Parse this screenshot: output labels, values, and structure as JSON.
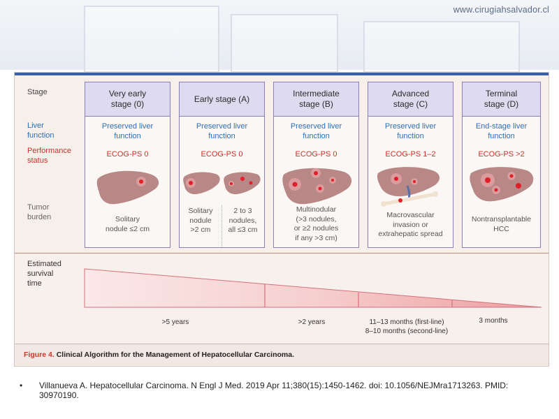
{
  "header": {
    "url": "www.cirugiahsalvador.cl"
  },
  "row_labels": {
    "stage": "Stage",
    "liver_function": [
      "Liver",
      "function"
    ],
    "performance_status": [
      "Performance",
      "status"
    ],
    "tumor_burden": [
      "Tumor",
      "burden"
    ]
  },
  "stages": [
    {
      "title": [
        "Very early",
        "stage (0)"
      ],
      "liver": [
        "Preserved liver",
        "function"
      ],
      "ecog": "ECOG-PS 0",
      "tumor": [
        "Solitary",
        "nodule ≤2 cm"
      ]
    },
    {
      "title": [
        "Early stage (A)"
      ],
      "liver": [
        "Preserved liver",
        "function"
      ],
      "ecog": "ECOG-PS 0",
      "tumor_sub": [
        [
          "Solitary",
          "nodule",
          ">2 cm"
        ],
        [
          "2 to 3",
          "nodules,",
          "all ≤3 cm"
        ]
      ]
    },
    {
      "title": [
        "Intermediate",
        "stage (B)"
      ],
      "liver": [
        "Preserved liver",
        "function"
      ],
      "ecog": "ECOG-PS 0",
      "tumor": [
        "Multinodular",
        "(>3 nodules,",
        "or ≥2 nodules",
        "if any >3 cm)"
      ]
    },
    {
      "title": [
        "Advanced",
        "stage (C)"
      ],
      "liver": [
        "Preserved liver",
        "function"
      ],
      "ecog": "ECOG-PS 1–2",
      "tumor": [
        "Macrovascular",
        "invasion or",
        "extrahepatic spread"
      ]
    },
    {
      "title": [
        "Terminal",
        "stage (D)"
      ],
      "liver": [
        "End-stage liver",
        "function"
      ],
      "ecog": "ECOG-PS >2",
      "tumor": [
        "Nontransplantable",
        "HCC"
      ]
    }
  ],
  "survival": {
    "label": [
      "Estimated",
      "survival",
      "time"
    ],
    "segments": [
      {
        "text": [
          ">5 years"
        ]
      },
      {
        "text": [
          ">2 years"
        ]
      },
      {
        "text": [
          "11–13 months (first-line)",
          "8–10 months (second-line)"
        ]
      },
      {
        "text": [
          "3 months"
        ]
      }
    ]
  },
  "caption": {
    "figure_number": "Figure 4.",
    "title": "Clinical Algorithm for the Management of Hepatocellular Carcinoma."
  },
  "citation": "Villanueva A. Hepatocellular Carcinoma. N Engl J Med. 2019 Apr 11;380(15):1450-1462.  doi: 10.1056/NEJMra1713263.  PMID: 30970190.",
  "colors": {
    "liver": "#b78886",
    "tumor": "#e0202a",
    "header_fill": "#dedaf0",
    "border": "#8a80b5",
    "survival_wedge": "#f4c7c7",
    "liver_function_text": "#2d6fb5",
    "performance_text": "#c8322c"
  }
}
